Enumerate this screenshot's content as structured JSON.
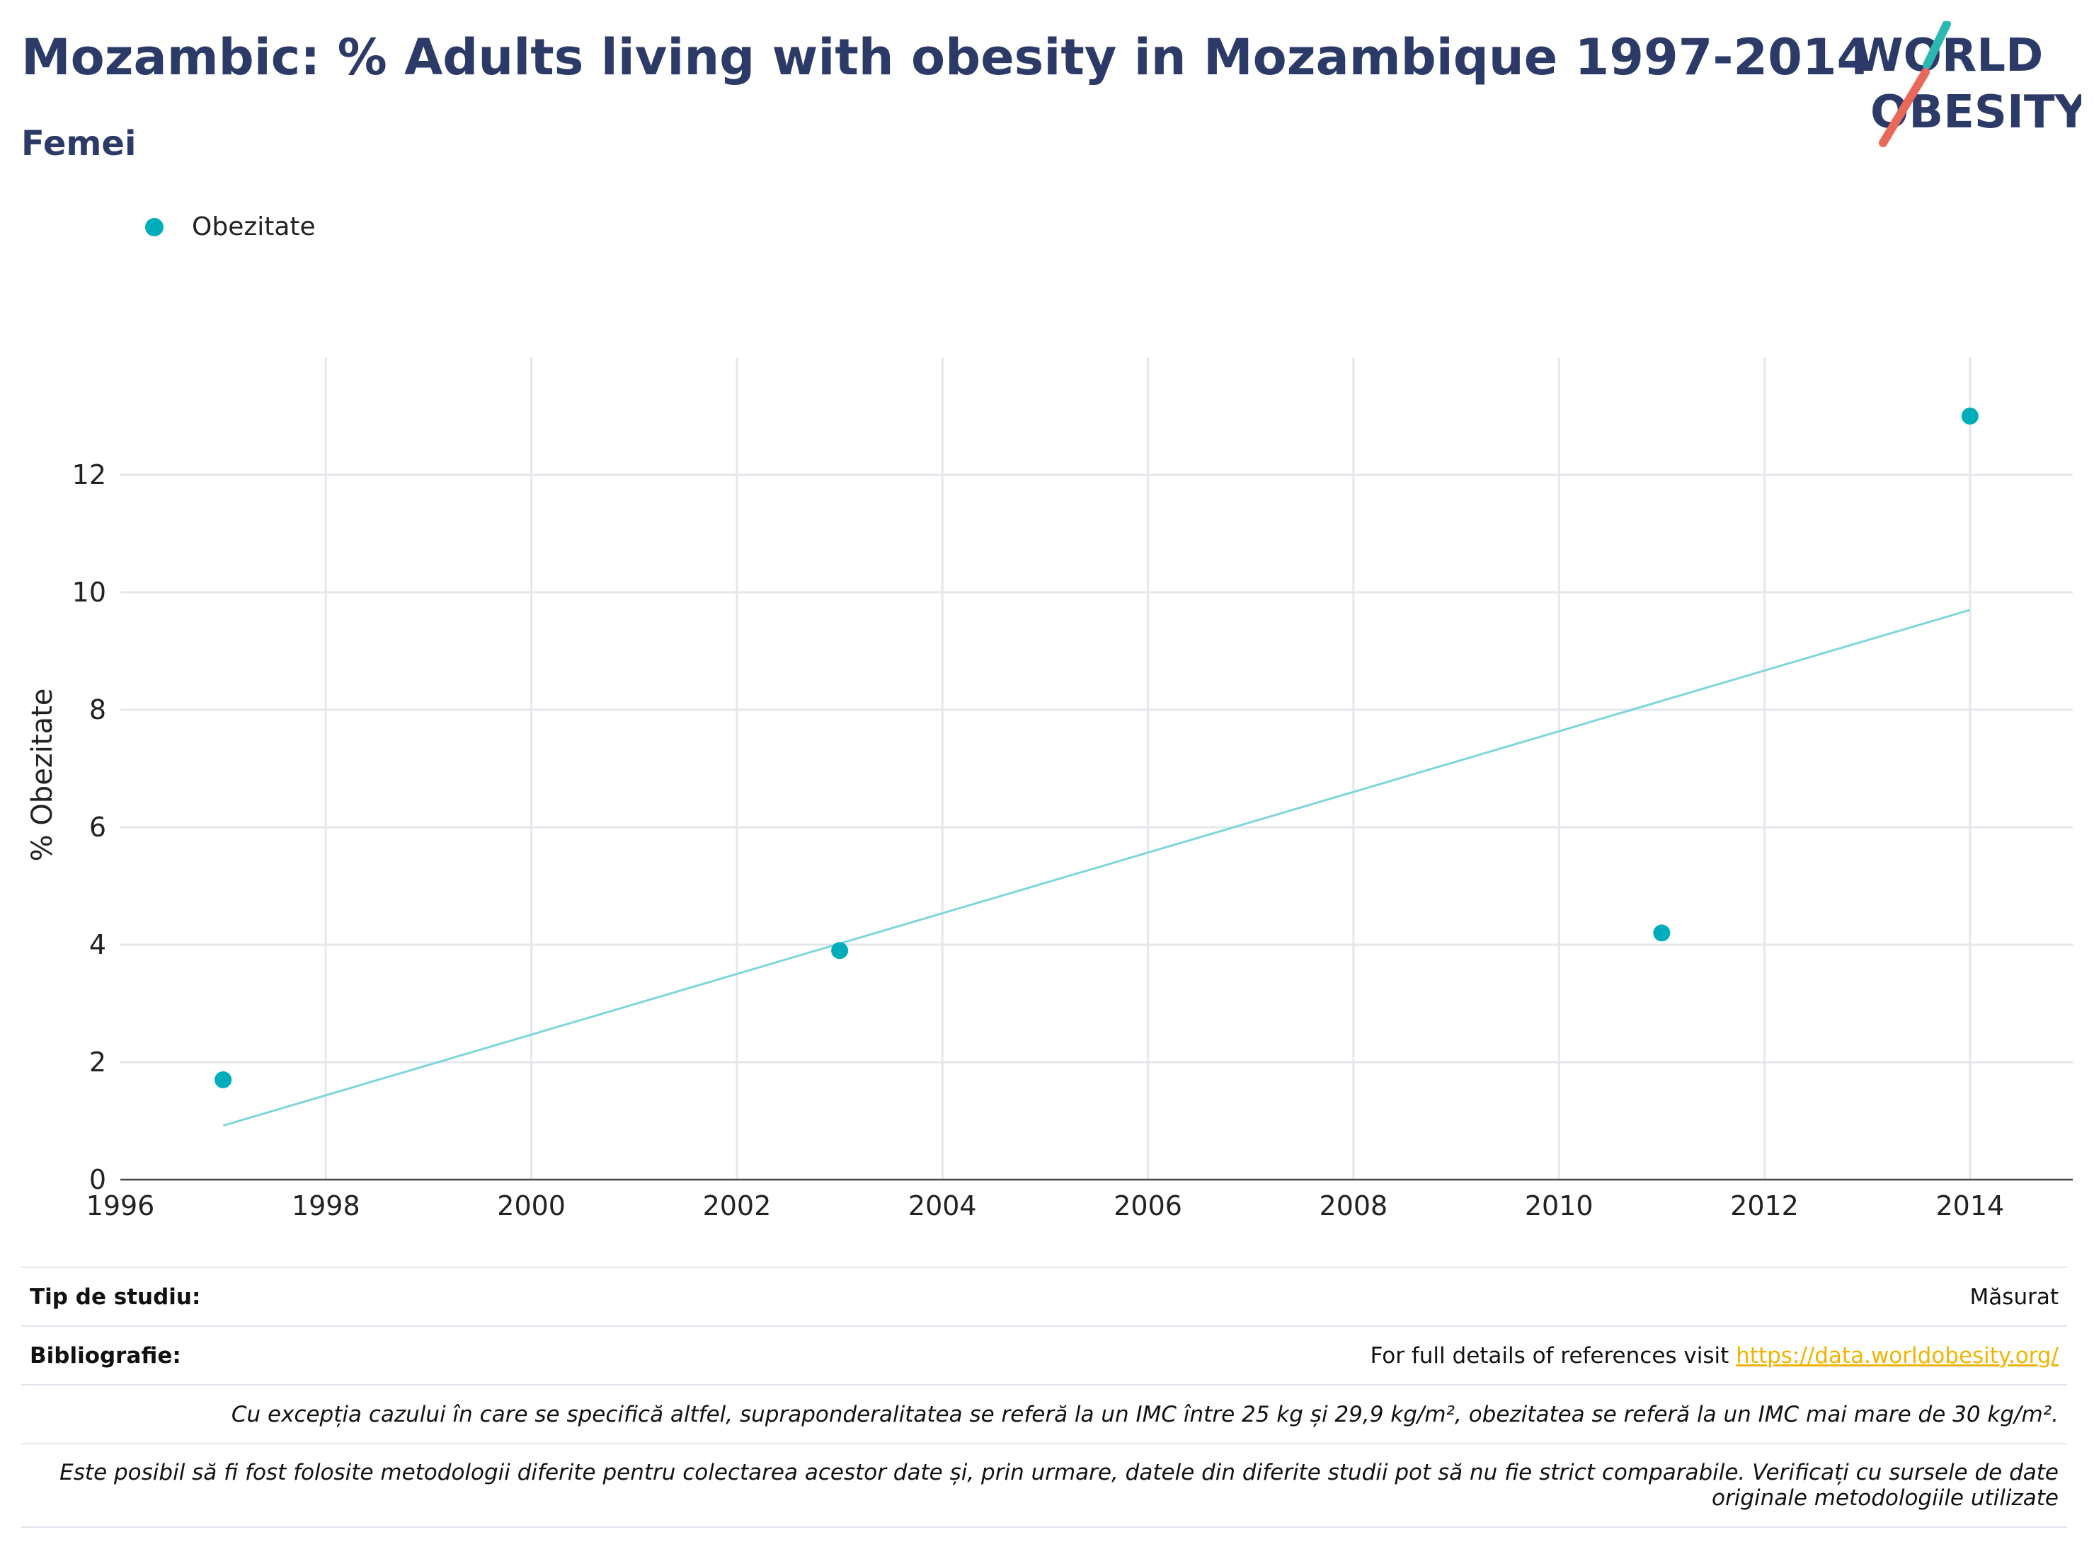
{
  "title": "Mozambic: % Adults living with obesity in Mozambique 1997-2014",
  "subtitle": "Femei",
  "logo": {
    "line1": "WORLD",
    "line2": "OBESITY",
    "colors": {
      "text": "#2b3a67",
      "teal": "#2bb8b0",
      "coral": "#e8685a"
    }
  },
  "legend": {
    "label": "Obezitate",
    "color": "#00aebb"
  },
  "chart_data": {
    "type": "scatter",
    "series": [
      {
        "name": "Obezitate",
        "x": [
          1997,
          2003,
          2011,
          2014
        ],
        "y": [
          1.7,
          3.9,
          4.2,
          13.0
        ],
        "color": "#00aebb"
      }
    ],
    "trendline": {
      "x": [
        1997,
        2014
      ],
      "y": [
        0.92,
        9.7
      ],
      "color": "#7dd6dc"
    },
    "xlim": [
      1996,
      2015
    ],
    "ylim": [
      0,
      14
    ],
    "x_ticks": [
      "1996",
      "1998",
      "2000",
      "2002",
      "2004",
      "2006",
      "2008",
      "2010",
      "2012",
      "2014"
    ],
    "y_ticks": [
      "0",
      "2",
      "4",
      "6",
      "8",
      "10",
      "12"
    ],
    "ylabel": "% Obezitate",
    "xlabel": "",
    "grid": true
  },
  "footer": {
    "study_type_label": "Tip de studiu:",
    "study_type_value": "Măsurat",
    "bibliography_label": "Bibliografie:",
    "bibliography_text": "For full details of references visit ",
    "bibliography_link": "https://data.worldobesity.org/",
    "note1": "Cu excepția cazului în care se specifică altfel, supraponderalitatea se referă la un IMC între 25 kg și 29,9 kg/m², obezitatea se referă la un IMC mai mare de 30 kg/m².",
    "note2": "Este posibil să fi fost folosite metodologii diferite pentru colectarea acestor date și, prin urmare, datele din diferite studii pot să nu fie strict comparabile. Verificați cu sursele de date originale metodologiile utilizate"
  }
}
